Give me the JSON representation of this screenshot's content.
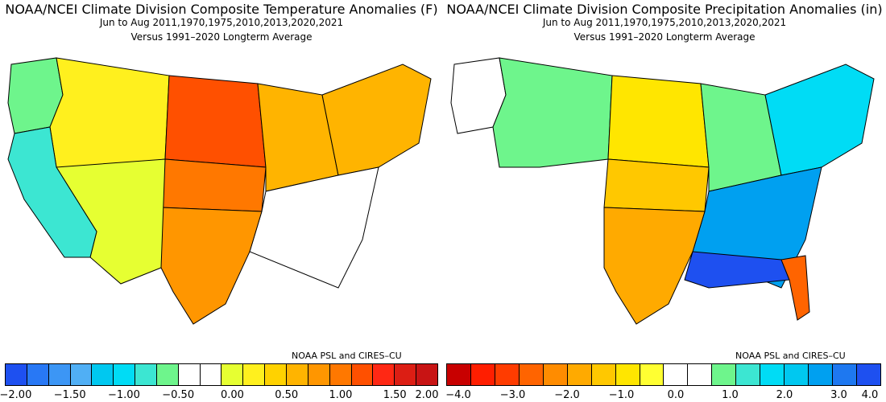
{
  "left": {
    "title": "NOAA/NCEI Climate Division Composite Temperature Anomalies (F)",
    "subtitle": "Jun to Aug  2011,1970,1975,2010,2013,2020,2021",
    "subtitle2": "Versus 1991–2020 Longterm Average",
    "credit": "NOAA PSL and CIRES–CU",
    "colorbar": {
      "colors": [
        "#1e50f0",
        "#2878f5",
        "#3c96f5",
        "#50aff5",
        "#00c8f0",
        "#00dcf5",
        "#3ce6d2",
        "#6ef58c",
        "#ffffff",
        "#ffffff",
        "#e6ff32",
        "#fff01e",
        "#ffd200",
        "#ffb400",
        "#ff9600",
        "#ff7800",
        "#ff5000",
        "#ff2814",
        "#dc1e14",
        "#c81414"
      ],
      "tick_labels": [
        "−2.00",
        "−1.50",
        "−1.00",
        "−0.50",
        "0.00",
        "0.50",
        "1.00",
        "1.50",
        "2.00"
      ]
    },
    "regions": [
      {
        "name": "pacific-northwest",
        "value": -0.5,
        "color": "#6ef58c"
      },
      {
        "name": "northern-rockies",
        "value": 0.6,
        "color": "#fff01e"
      },
      {
        "name": "northern-plains",
        "value": 1.7,
        "color": "#ff5000"
      },
      {
        "name": "central-plains",
        "value": 1.3,
        "color": "#ff7800"
      },
      {
        "name": "midwest",
        "value": 0.9,
        "color": "#ffb400"
      },
      {
        "name": "northeast",
        "value": 0.9,
        "color": "#ffb400"
      },
      {
        "name": "southeast",
        "value": 0.0,
        "color": "#ffffff"
      },
      {
        "name": "southern-plains",
        "value": 1.0,
        "color": "#ff9600"
      },
      {
        "name": "southwest",
        "value": 0.4,
        "color": "#e6ff32"
      },
      {
        "name": "california",
        "value": -0.8,
        "color": "#3ce6d2"
      }
    ]
  },
  "right": {
    "title": "NOAA/NCEI Climate Division Composite Precipitation Anomalies (in)",
    "subtitle": "Jun to Aug  2011,1970,1975,2010,2013,2020,2021",
    "subtitle2": "Versus 1991–2020 Longterm Average",
    "credit": "NOAA PSL and CIRES–CU",
    "colorbar": {
      "colors": [
        "#c80000",
        "#ff1e00",
        "#ff3c00",
        "#ff6400",
        "#ff8c00",
        "#ffaa00",
        "#ffc800",
        "#ffe600",
        "#ffff32",
        "#ffffff",
        "#ffffff",
        "#6ef58c",
        "#3ce6d2",
        "#00dcf5",
        "#00c8f0",
        "#00a0f0",
        "#1e78f0",
        "#1e50f0"
      ],
      "tick_labels": [
        "−4.0",
        "−3.0",
        "−2.0",
        "−1.0",
        "0.0",
        "1.0",
        "2.0",
        "3.0",
        "4.0"
      ]
    },
    "regions": [
      {
        "name": "pacific-northwest",
        "value": 0.0,
        "color": "#ffffff"
      },
      {
        "name": "northern-rockies",
        "value": 0.6,
        "color": "#6ef58c"
      },
      {
        "name": "northern-plains",
        "value": -0.8,
        "color": "#ffe600"
      },
      {
        "name": "central-plains",
        "value": -1.4,
        "color": "#ffc800"
      },
      {
        "name": "midwest",
        "value": 0.8,
        "color": "#6ef58c"
      },
      {
        "name": "northeast",
        "value": 1.8,
        "color": "#00dcf5"
      },
      {
        "name": "southeast",
        "value": 2.6,
        "color": "#00a0f0"
      },
      {
        "name": "gulf-coast",
        "value": 3.6,
        "color": "#1e50f0"
      },
      {
        "name": "southern-plains",
        "value": -1.8,
        "color": "#ffaa00"
      },
      {
        "name": "florida",
        "value": -2.8,
        "color": "#ff6400"
      }
    ]
  }
}
